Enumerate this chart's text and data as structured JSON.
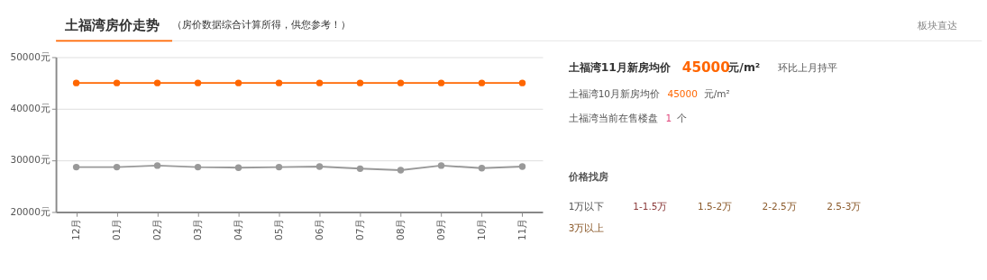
{
  "chart_data": {
    "type": "line",
    "title": "土福湾房价走势",
    "subtitle": "（房价数据综合计算所得，供您参考！）",
    "categories": [
      "12月",
      "01月",
      "02月",
      "03月",
      "04月",
      "05月",
      "06月",
      "07月",
      "08月",
      "09月",
      "10月",
      "11月"
    ],
    "series": [
      {
        "color": "#ff6600",
        "values": [
          45000,
          45000,
          45000,
          45000,
          45000,
          45000,
          45000,
          45000,
          45000,
          45000,
          45000,
          45000
        ]
      },
      {
        "color": "#999999",
        "values": [
          28700,
          28700,
          29000,
          28700,
          28600,
          28700,
          28800,
          28400,
          28100,
          29000,
          28500,
          28800
        ]
      }
    ],
    "ylim": [
      20000,
      50000
    ],
    "yticks": [
      {
        "value": 20000,
        "label": "20000元"
      },
      {
        "value": 30000,
        "label": "30000元"
      },
      {
        "value": 40000,
        "label": "40000元"
      },
      {
        "value": 50000,
        "label": "50000元"
      }
    ],
    "grid": "y",
    "marker": "circle",
    "line_style": "solid",
    "legend": false,
    "annotations": [
      "板块直达",
      "土福湾11月新房均价",
      "45000",
      "元/m²",
      "环比上月持平",
      "土福湾10月新房均价",
      "45000",
      "元/m²",
      "土福湾当前在售楼盘",
      "1",
      "个",
      "价格找房",
      "1万以下",
      "1-1.5万",
      "1.5-2万",
      "2-2.5万",
      "2.5-3万",
      "3万以上"
    ]
  }
}
